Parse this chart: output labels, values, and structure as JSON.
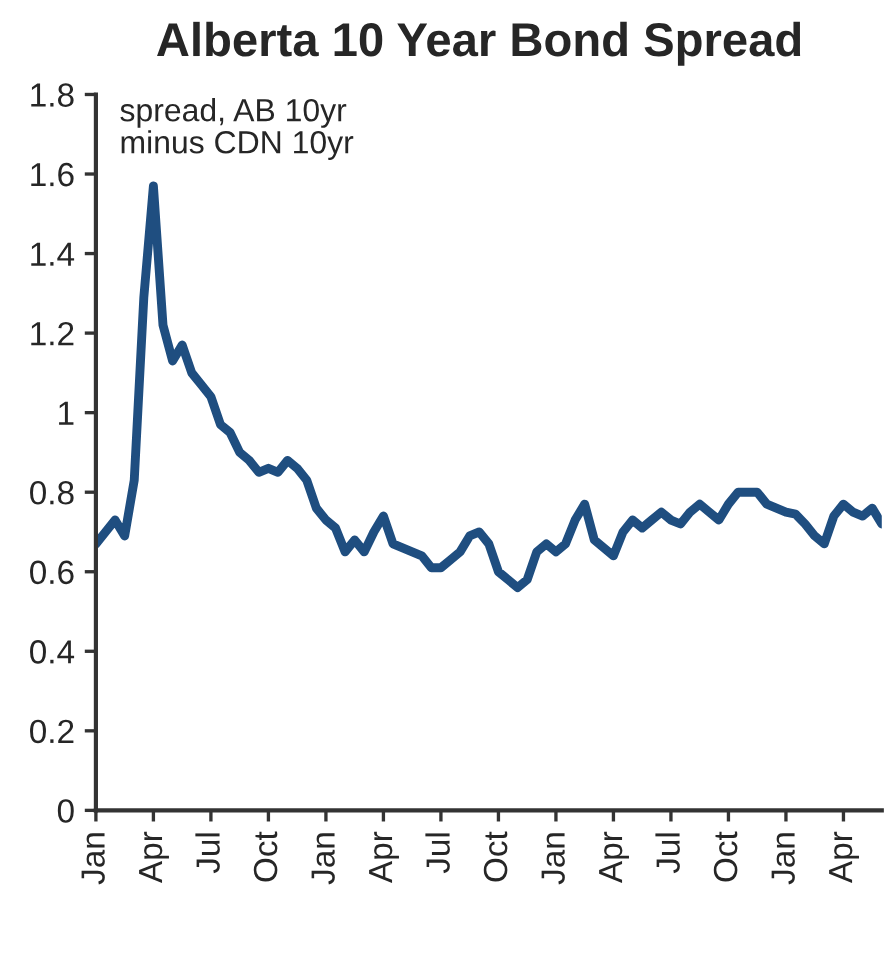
{
  "chart_data": {
    "type": "line",
    "title": "Alberta 10 Year Bond Spread",
    "annotations": [
      "spread, AB 10yr\nminus CDN 10yr"
    ],
    "categories": [
      "Jan",
      null,
      null,
      null,
      null,
      null,
      "Apr",
      null,
      null,
      null,
      null,
      null,
      "Jul",
      null,
      null,
      null,
      null,
      null,
      "Oct",
      null,
      null,
      null,
      null,
      null,
      "Jan",
      null,
      null,
      null,
      null,
      null,
      "Apr",
      null,
      null,
      null,
      null,
      null,
      "Jul",
      null,
      null,
      null,
      null,
      null,
      "Oct",
      null,
      null,
      null,
      null,
      null,
      "Jan",
      null,
      null,
      null,
      null,
      null,
      "Apr",
      null,
      null,
      null,
      null,
      null,
      "Jul",
      null,
      null,
      null,
      null,
      null,
      "Oct",
      null,
      null,
      null,
      null,
      null,
      "Jan",
      null,
      null,
      null,
      null,
      null,
      "Apr",
      null,
      null,
      null,
      null
    ],
    "series": [
      {
        "color": "#1f4e80",
        "values": [
          0.67,
          0.7,
          0.73,
          0.69,
          0.83,
          1.29,
          1.57,
          1.22,
          1.13,
          1.17,
          1.1,
          1.07,
          1.04,
          0.97,
          0.95,
          0.9,
          0.88,
          0.85,
          0.86,
          0.85,
          0.88,
          0.86,
          0.83,
          0.76,
          0.73,
          0.71,
          0.65,
          0.68,
          0.65,
          0.7,
          0.74,
          0.67,
          0.66,
          0.65,
          0.64,
          0.61,
          0.61,
          0.63,
          0.65,
          0.69,
          0.7,
          0.67,
          0.6,
          0.58,
          0.56,
          0.58,
          0.65,
          0.67,
          0.65,
          0.67,
          0.73,
          0.77,
          0.68,
          0.66,
          0.64,
          0.7,
          0.73,
          0.71,
          0.73,
          0.75,
          0.73,
          0.72,
          0.75,
          0.77,
          0.75,
          0.73,
          0.77,
          0.8,
          0.8,
          0.8,
          0.77,
          0.76,
          0.75,
          0.745,
          0.72,
          0.69,
          0.67,
          0.74,
          0.77,
          0.75,
          0.74,
          0.76,
          0.72
        ]
      }
    ],
    "ylim": [
      0,
      1.8
    ],
    "yticks": [
      0,
      0.2,
      0.4,
      0.6,
      0.8,
      1,
      1.2,
      1.4,
      1.6,
      1.8
    ],
    "grid": false,
    "legend": false,
    "marker": "none",
    "line_style": "solid"
  }
}
